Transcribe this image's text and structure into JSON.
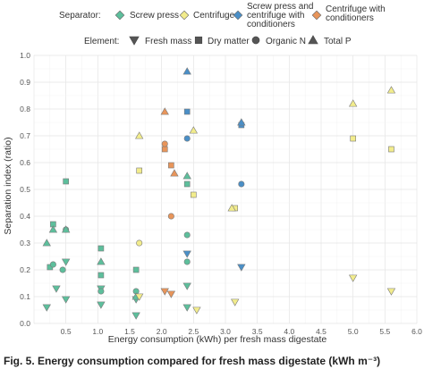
{
  "chart_data": {
    "type": "scatter",
    "title": "",
    "xlabel": "Energy consumption (kWh) per fresh mass digestate",
    "ylabel": "Separation index (ratio)",
    "xlim": [
      0,
      6.0
    ],
    "ylim": [
      0,
      1.0
    ],
    "x_ticks": [
      "0.5",
      "1.0",
      "1.5",
      "2.0",
      "2.5",
      "3.0",
      "3.5",
      "4.0",
      "4.5",
      "5.0",
      "5.5",
      "6.0"
    ],
    "y_ticks": [
      "0.0",
      "0.1",
      "0.2",
      "0.3",
      "0.4",
      "0.5",
      "0.6",
      "0.7",
      "0.8",
      "0.9",
      "1.0"
    ],
    "grid": true,
    "legend_placement": "top",
    "separator_legend": {
      "title": "Separator:",
      "items": [
        {
          "key": "screw",
          "label": "Screw press",
          "color": "#5dbf9c"
        },
        {
          "key": "centrifuge",
          "label": "Centrifuge",
          "color": "#f2ec8c"
        },
        {
          "key": "screw_cond",
          "label_lines": [
            "Screw press and",
            "centrifuge with",
            "conditioners"
          ],
          "color": "#4a8fc7"
        },
        {
          "key": "centrifuge_cond",
          "label_lines": [
            "Centrifuge with",
            "conditioners"
          ],
          "color": "#e8955a"
        }
      ]
    },
    "element_legend": {
      "title": "Element:",
      "items": [
        {
          "key": "fresh",
          "label": "Fresh mass",
          "shape": "triangle-down"
        },
        {
          "key": "dry",
          "label": "Dry matter",
          "shape": "square"
        },
        {
          "key": "orgn",
          "label": "Organic N",
          "shape": "circle"
        },
        {
          "key": "totp",
          "label": "Total P",
          "shape": "triangle-up"
        }
      ]
    },
    "series": [
      {
        "separator": "screw",
        "element": "fresh",
        "points": [
          [
            0.2,
            0.06
          ],
          [
            0.35,
            0.13
          ],
          [
            0.5,
            0.09
          ],
          [
            0.5,
            0.23
          ],
          [
            1.05,
            0.07
          ],
          [
            1.05,
            0.13
          ],
          [
            1.6,
            0.03
          ],
          [
            1.6,
            0.09
          ],
          [
            2.4,
            0.06
          ],
          [
            2.4,
            0.14
          ]
        ]
      },
      {
        "separator": "screw",
        "element": "dry",
        "points": [
          [
            0.25,
            0.21
          ],
          [
            0.3,
            0.37
          ],
          [
            0.5,
            0.53
          ],
          [
            1.05,
            0.28
          ],
          [
            1.05,
            0.18
          ],
          [
            1.6,
            0.2
          ],
          [
            2.4,
            0.52
          ]
        ]
      },
      {
        "separator": "screw",
        "element": "orgn",
        "points": [
          [
            0.3,
            0.22
          ],
          [
            0.45,
            0.2
          ],
          [
            0.5,
            0.35
          ],
          [
            1.05,
            0.12
          ],
          [
            1.6,
            0.12
          ],
          [
            2.4,
            0.33
          ],
          [
            2.4,
            0.23
          ]
        ]
      },
      {
        "separator": "screw",
        "element": "totp",
        "points": [
          [
            0.2,
            0.3
          ],
          [
            0.3,
            0.35
          ],
          [
            0.5,
            0.35
          ],
          [
            1.05,
            0.23
          ],
          [
            1.6,
            0.1
          ],
          [
            2.4,
            0.55
          ]
        ]
      },
      {
        "separator": "centrifuge",
        "element": "fresh",
        "points": [
          [
            1.65,
            0.1
          ],
          [
            2.55,
            0.05
          ],
          [
            3.15,
            0.08
          ],
          [
            5.0,
            0.17
          ],
          [
            5.6,
            0.12
          ]
        ]
      },
      {
        "separator": "centrifuge",
        "element": "dry",
        "points": [
          [
            1.65,
            0.57
          ],
          [
            2.5,
            0.48
          ],
          [
            3.15,
            0.43
          ],
          [
            5.0,
            0.69
          ],
          [
            5.6,
            0.65
          ]
        ]
      },
      {
        "separator": "centrifuge",
        "element": "orgn",
        "points": [
          [
            1.65,
            0.3
          ]
        ]
      },
      {
        "separator": "centrifuge",
        "element": "totp",
        "points": [
          [
            1.65,
            0.7
          ],
          [
            2.5,
            0.72
          ],
          [
            3.1,
            0.43
          ],
          [
            5.0,
            0.82
          ],
          [
            5.6,
            0.87
          ]
        ]
      },
      {
        "separator": "screw_cond",
        "element": "fresh",
        "points": [
          [
            2.4,
            0.26
          ],
          [
            3.25,
            0.21
          ]
        ]
      },
      {
        "separator": "screw_cond",
        "element": "dry",
        "points": [
          [
            2.4,
            0.79
          ],
          [
            3.25,
            0.74
          ]
        ]
      },
      {
        "separator": "screw_cond",
        "element": "orgn",
        "points": [
          [
            2.4,
            0.69
          ],
          [
            3.25,
            0.52
          ]
        ]
      },
      {
        "separator": "screw_cond",
        "element": "totp",
        "points": [
          [
            2.4,
            0.94
          ],
          [
            3.25,
            0.75
          ]
        ]
      },
      {
        "separator": "centrifuge_cond",
        "element": "fresh",
        "points": [
          [
            2.05,
            0.12
          ],
          [
            2.15,
            0.11
          ]
        ]
      },
      {
        "separator": "centrifuge_cond",
        "element": "dry",
        "points": [
          [
            2.05,
            0.65
          ],
          [
            2.15,
            0.59
          ]
        ]
      },
      {
        "separator": "centrifuge_cond",
        "element": "orgn",
        "points": [
          [
            2.05,
            0.67
          ],
          [
            2.15,
            0.4
          ]
        ]
      },
      {
        "separator": "centrifuge_cond",
        "element": "totp",
        "points": [
          [
            2.05,
            0.79
          ],
          [
            2.2,
            0.56
          ]
        ]
      }
    ]
  },
  "caption": "Fig. 5. Energy consumption compared for fresh mass digestate (kWh m⁻³)"
}
